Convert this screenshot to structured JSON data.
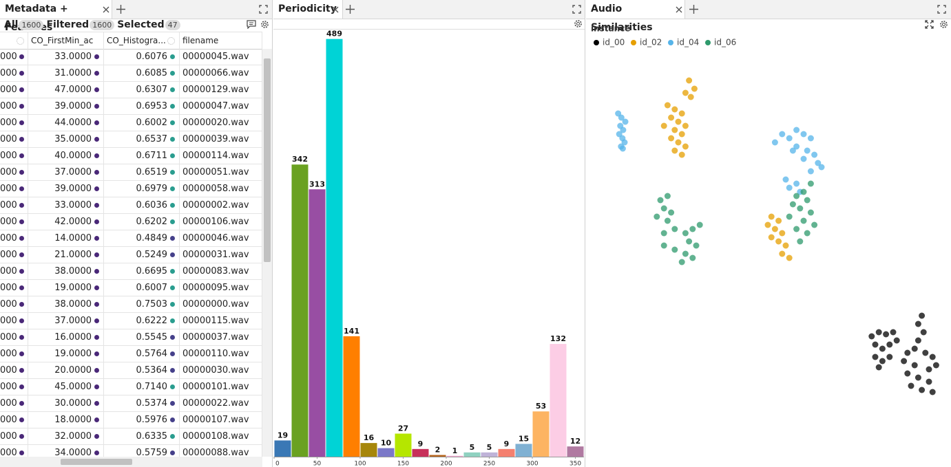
{
  "metadata_panel": {
    "title": "Metadata + Features",
    "counts": [
      {
        "label": "All",
        "value": 1600
      },
      {
        "label": "Filtered",
        "value": 1600
      },
      {
        "label": "Selected",
        "value": 47
      }
    ],
    "columns": [
      "CO_FirstMin_ac",
      "CO_Histogra...",
      "filename"
    ],
    "rows": [
      [
        "000",
        "33.0000",
        "0.6076",
        "00000045.wav"
      ],
      [
        "000",
        "31.0000",
        "0.6085",
        "00000066.wav"
      ],
      [
        "000",
        "47.0000",
        "0.6307",
        "00000129.wav"
      ],
      [
        "000",
        "39.0000",
        "0.6953",
        "00000047.wav"
      ],
      [
        "000",
        "44.0000",
        "0.6002",
        "00000020.wav"
      ],
      [
        "000",
        "35.0000",
        "0.6537",
        "00000039.wav"
      ],
      [
        "000",
        "40.0000",
        "0.6711",
        "00000114.wav"
      ],
      [
        "000",
        "37.0000",
        "0.6519",
        "00000051.wav"
      ],
      [
        "000",
        "39.0000",
        "0.6979",
        "00000058.wav"
      ],
      [
        "000",
        "33.0000",
        "0.6036",
        "00000002.wav"
      ],
      [
        "000",
        "42.0000",
        "0.6202",
        "00000106.wav"
      ],
      [
        "000",
        "14.0000",
        "0.4849",
        "00000046.wav"
      ],
      [
        "000",
        "21.0000",
        "0.5249",
        "00000031.wav"
      ],
      [
        "000",
        "38.0000",
        "0.6695",
        "00000083.wav"
      ],
      [
        "000",
        "19.0000",
        "0.6007",
        "00000095.wav"
      ],
      [
        "000",
        "38.0000",
        "0.7503",
        "00000000.wav"
      ],
      [
        "000",
        "37.0000",
        "0.6222",
        "00000115.wav"
      ],
      [
        "000",
        "16.0000",
        "0.5545",
        "00000037.wav"
      ],
      [
        "000",
        "19.0000",
        "0.5764",
        "00000110.wav"
      ],
      [
        "000",
        "20.0000",
        "0.5364",
        "00000030.wav"
      ],
      [
        "000",
        "45.0000",
        "0.7140",
        "00000101.wav"
      ],
      [
        "000",
        "30.0000",
        "0.5374",
        "00000022.wav"
      ],
      [
        "000",
        "18.0000",
        "0.5976",
        "00000107.wav"
      ],
      [
        "000",
        "32.0000",
        "0.6335",
        "00000108.wav"
      ],
      [
        "000",
        "34.0000",
        "0.5759",
        "00000088.wav"
      ]
    ]
  },
  "chart_data": [
    {
      "type": "histogram",
      "title": "Periodicity",
      "bins": [
        0,
        20,
        40,
        60,
        80,
        100,
        120,
        140,
        160,
        180,
        200,
        220,
        240,
        260,
        280,
        300,
        320,
        340,
        360
      ],
      "values": [
        19,
        342,
        313,
        489,
        141,
        16,
        10,
        27,
        9,
        2,
        1,
        5,
        5,
        9,
        15,
        53,
        132,
        12
      ],
      "colors": [
        "#3a78b5",
        "#6aa121",
        "#984ea3",
        "#00d3d6",
        "#ff7f00",
        "#a6860a",
        "#7b78c8",
        "#b5e600",
        "#c7305a",
        "#b5651d",
        "#f4a6d0",
        "#8fd1c0",
        "#bfb3d8",
        "#f4806f",
        "#80b1d3",
        "#fdb462",
        "#fccde5",
        "#b07aa1"
      ],
      "xlim": [
        0,
        360
      ],
      "xticks": [
        0,
        50,
        100,
        150,
        200,
        250,
        300,
        350
      ],
      "ylim": [
        0,
        500
      ]
    },
    {
      "type": "scatter",
      "title": "Audio Similarities",
      "legend_title": "instance",
      "xlim": [
        0,
        100
      ],
      "ylim": [
        0,
        100
      ],
      "series": [
        {
          "name": "id_00",
          "color": "#000000",
          "x": [
            79,
            81,
            83,
            85,
            80,
            82,
            84,
            86,
            80,
            82,
            84,
            81,
            93,
            92,
            93.5,
            92,
            91,
            89,
            94,
            96,
            88,
            91,
            95,
            97,
            89,
            92,
            95,
            90,
            93,
            96
          ],
          "values": [
            31,
            32,
            31.5,
            32,
            29,
            28,
            29,
            30,
            26,
            25,
            26,
            23.5,
            36,
            34,
            32,
            30,
            28,
            27,
            27,
            26,
            25,
            24,
            23,
            24,
            22,
            21,
            20,
            19,
            18,
            17.5
          ]
        },
        {
          "name": "id_02",
          "color": "#e69f00",
          "x": [
            28,
            29.5,
            28.5,
            27,
            22,
            24,
            26,
            23,
            25,
            21,
            27,
            24,
            26,
            23,
            25,
            27,
            24,
            26,
            51,
            53,
            50,
            52,
            54,
            51,
            53,
            55,
            54,
            56
          ],
          "values": [
            93,
            91,
            89,
            90,
            87,
            86,
            85,
            84,
            83,
            82,
            82,
            81,
            80,
            79,
            78,
            77,
            76,
            75,
            60,
            59,
            58,
            57,
            56,
            55,
            54,
            53,
            51,
            50
          ]
        },
        {
          "name": "id_04",
          "color": "#56b4e9",
          "x": [
            8.2,
            9.1,
            10.2,
            8.8,
            9.6,
            8.5,
            9.4,
            10,
            9,
            9.5,
            52,
            54,
            56,
            58,
            60,
            62,
            58,
            61,
            63,
            64,
            65,
            60,
            57,
            62,
            58,
            56,
            59,
            55
          ],
          "values": [
            85,
            84,
            83,
            82,
            81,
            80,
            79,
            78,
            77,
            76.5,
            78,
            80,
            79,
            81,
            80,
            79,
            77,
            76,
            75,
            73,
            72,
            74,
            76,
            71,
            68,
            67,
            66,
            69
          ]
        },
        {
          "name": "id_06",
          "color": "#2e9a6c",
          "x": [
            20,
            22,
            21,
            23,
            19,
            22,
            24,
            21,
            27,
            29,
            31,
            28,
            30,
            21,
            24,
            27,
            29,
            26,
            62,
            60,
            58,
            61,
            57,
            59,
            62,
            56,
            60,
            63,
            58,
            61,
            59
          ],
          "values": [
            64,
            65,
            62,
            61,
            60,
            59,
            57,
            56,
            56,
            57,
            58,
            54,
            53,
            53,
            52,
            51,
            50,
            49,
            68,
            66,
            65,
            64,
            63,
            62,
            61,
            60,
            59,
            58,
            57,
            56,
            54
          ]
        }
      ]
    }
  ]
}
